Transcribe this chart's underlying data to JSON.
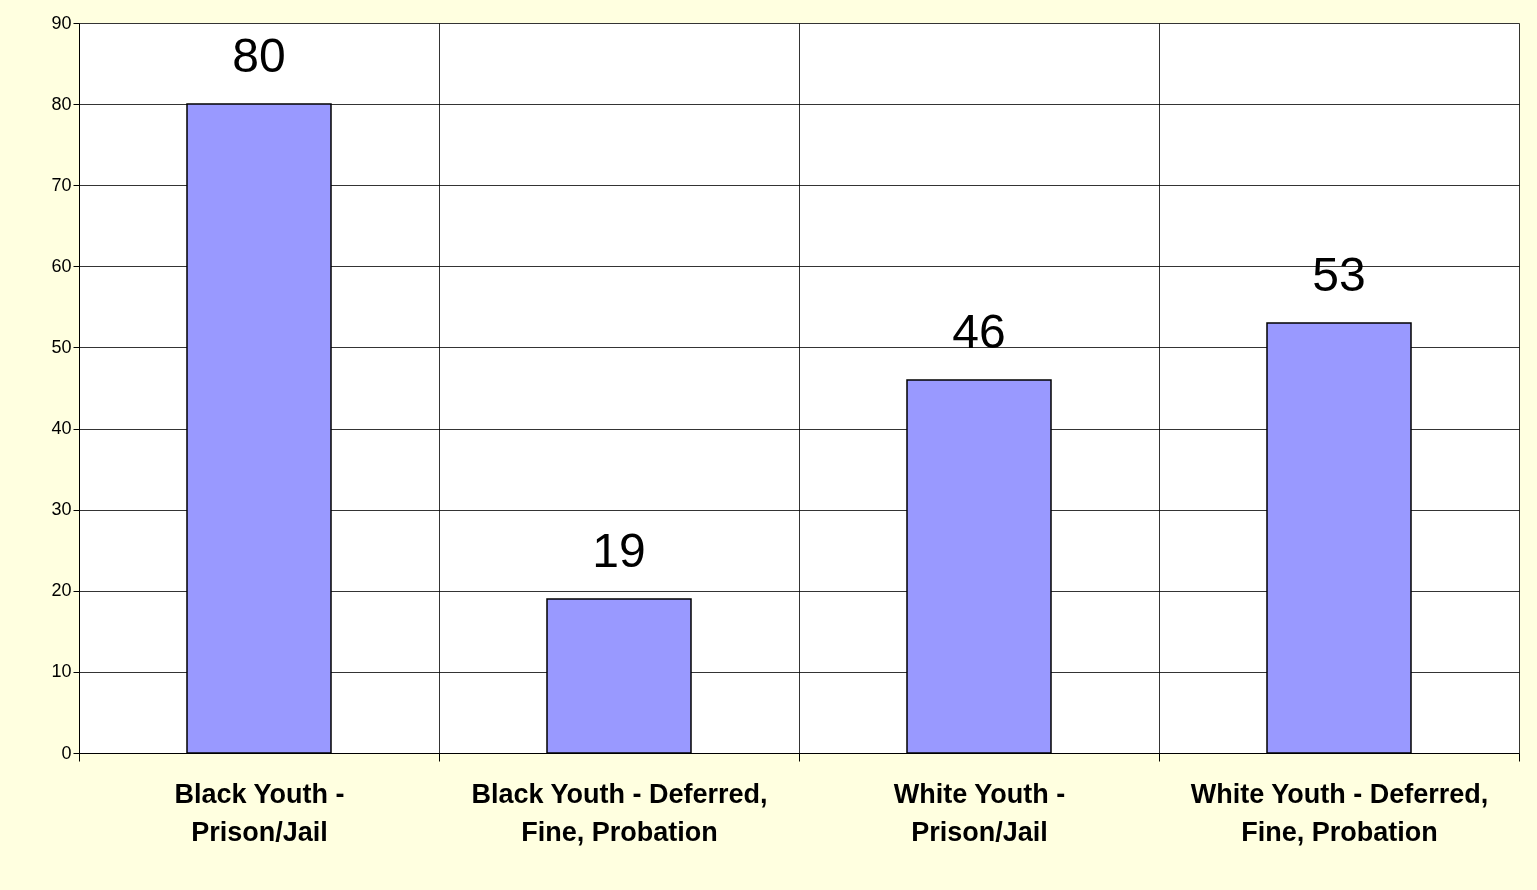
{
  "chart_data": {
    "type": "bar",
    "categories": [
      "Black Youth - Prison/Jail",
      "Black Youth - Deferred, Fine, Probation",
      "White Youth - Prison/Jail",
      "White Youth - Deferred, Fine, Probation"
    ],
    "values": [
      80,
      19,
      46,
      53
    ],
    "color": "#9999ff",
    "ylim": [
      0,
      90
    ],
    "yticks": [
      0,
      10,
      20,
      30,
      40,
      50,
      60,
      70,
      80,
      90
    ],
    "grid": true,
    "data_labels": true
  }
}
